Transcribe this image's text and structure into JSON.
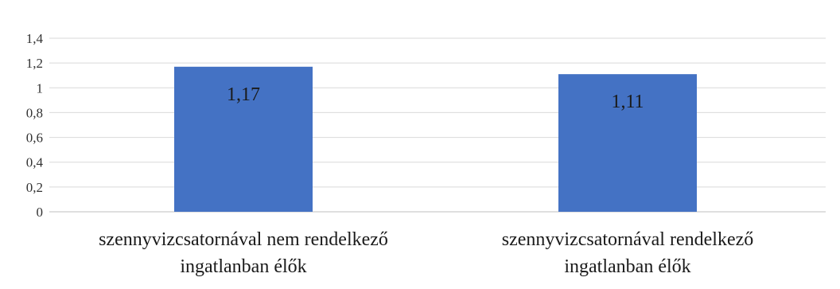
{
  "chart_data": {
    "type": "bar",
    "categories": [
      [
        "szennyvizcsatornával nem rendelkező",
        "ingatlanban élők"
      ],
      [
        "szennyvizcsatornával rendelkező",
        "ingatlanban élők"
      ]
    ],
    "values": [
      1.17,
      1.11
    ],
    "data_labels": [
      "1,17",
      "1,11"
    ],
    "y_ticks": [
      0,
      0.2,
      0.4,
      0.6,
      0.8,
      1,
      1.2,
      1.4
    ],
    "y_tick_labels": [
      "0",
      "0,2",
      "0,4",
      "0,6",
      "0,8",
      "1",
      "1,2",
      "1,4"
    ],
    "ylim": [
      0,
      1.4
    ],
    "grid": true,
    "legend": "none",
    "title": "",
    "xlabel": "",
    "ylabel": "",
    "colors": {
      "bar": "#4472c4",
      "grid": "#d9d9d9",
      "axis": "#bfbfbf"
    }
  }
}
